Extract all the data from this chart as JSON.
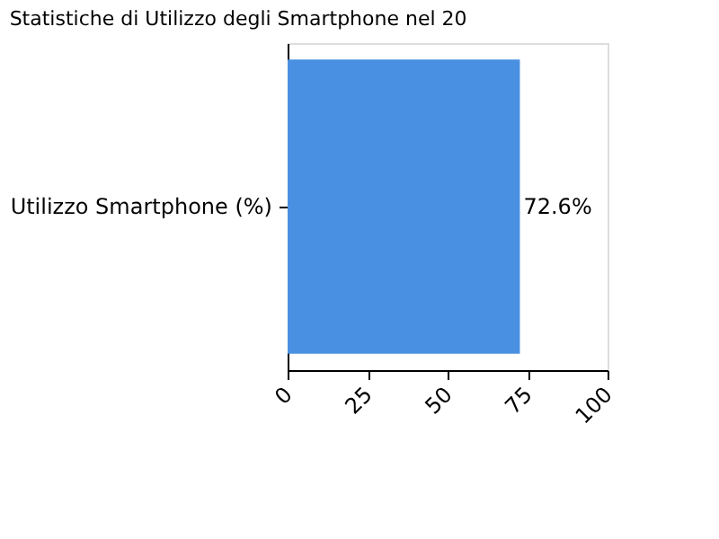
{
  "chart_data": {
    "type": "bar",
    "orientation": "horizontal",
    "title": "Statistiche di Utilizzo degli Smartphone nel 20",
    "categories": [
      "Utilizzo Smartphone (%)"
    ],
    "values": [
      72.6
    ],
    "color": "#4a90e2",
    "value_labels": [
      "72.6%"
    ],
    "xlim": [
      0,
      100
    ],
    "xticks": [
      0,
      25,
      50,
      75,
      100
    ],
    "grid": false
  }
}
